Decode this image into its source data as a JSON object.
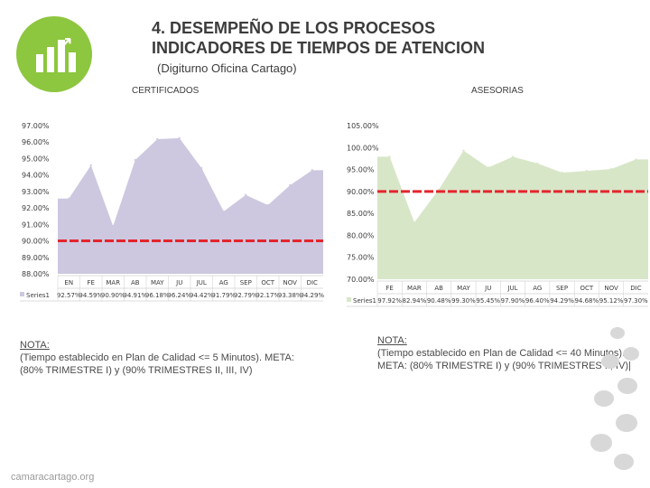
{
  "header": {
    "title_line1": "4. DESEMPEÑO DE LOS PROCESOS",
    "title_line2": "INDICADORES DE TIEMPOS DE ATENCION",
    "subtitle": "(Digiturno Oficina Cartago)"
  },
  "footer": {
    "website": "camaracartago.org"
  },
  "notes": {
    "certificados": {
      "label": "NOTA:",
      "text": "(Tiempo establecido en Plan de Calidad <= 5 Minutos). META: (80% TRIMESTRE I) y (90% TRIMESTRES II, III, IV)"
    },
    "asesorias": {
      "label": "NOTA:",
      "text": "(Tiempo establecido en Plan de Calidad <= 40 Minutos). META: (80% TRIMESTRE I) y (90% TRIMESTRES II, IV)|"
    }
  },
  "colors": {
    "area_left": "#cdc8e0",
    "area_right": "#d8e6c8",
    "target_line": "#e3262d",
    "axis_text": "#3c3c3c"
  },
  "chart_data": [
    {
      "type": "area",
      "title": "CERTIFICADOS",
      "categories": [
        "EN",
        "FE",
        "MAR",
        "AB",
        "MAY",
        "JU",
        "JUL",
        "AG",
        "SEP",
        "OCT",
        "NOV",
        "DIC"
      ],
      "series": [
        {
          "name": "Series1",
          "values": [
            92.57,
            94.59,
            90.9,
            94.91,
            96.18,
            96.24,
            94.42,
            91.79,
            92.79,
            92.17,
            93.38,
            94.29
          ]
        }
      ],
      "value_labels": [
        "92.57%",
        "94.59%",
        "90.90%",
        "94.91%",
        "96.18%",
        "96.24%",
        "94.42%",
        "91.79%",
        "92.79%",
        "92.17%",
        "93.38%",
        "94.29%"
      ],
      "ylim": [
        88,
        97
      ],
      "yticks": [
        "97.00%",
        "96.00%",
        "95.00%",
        "94.00%",
        "93.00%",
        "92.00%",
        "91.00%",
        "90.00%",
        "89.00%",
        "88.00%"
      ],
      "ytick_values": [
        97,
        96,
        95,
        94,
        93,
        92,
        91,
        90,
        89,
        88
      ],
      "target": 90
    },
    {
      "type": "area",
      "title": "ASESORIAS",
      "categories": [
        "FE",
        "MAR",
        "AB",
        "MAY",
        "JU",
        "JUL",
        "AG",
        "SEP",
        "OCT",
        "NOV",
        "DIC"
      ],
      "series": [
        {
          "name": "Series1",
          "values": [
            97.92,
            82.94,
            90.48,
            99.3,
            95.45,
            97.9,
            96.4,
            94.29,
            94.68,
            95.12,
            97.3
          ]
        }
      ],
      "value_labels": [
        "97.92%",
        "82.94%",
        "90.48%",
        "99.30%",
        "95.45%",
        "97.90%",
        "96.40%",
        "94.29%",
        "94.68%",
        "95.12%",
        "97.30%"
      ],
      "ylim": [
        70,
        105
      ],
      "yticks": [
        "105.00%",
        "100.00%",
        "95.00%",
        "90.00%",
        "85.00%",
        "80.00%",
        "75.00%",
        "70.00%"
      ],
      "ytick_values": [
        105,
        100,
        95,
        90,
        85,
        80,
        75,
        70
      ],
      "target": 90
    }
  ]
}
